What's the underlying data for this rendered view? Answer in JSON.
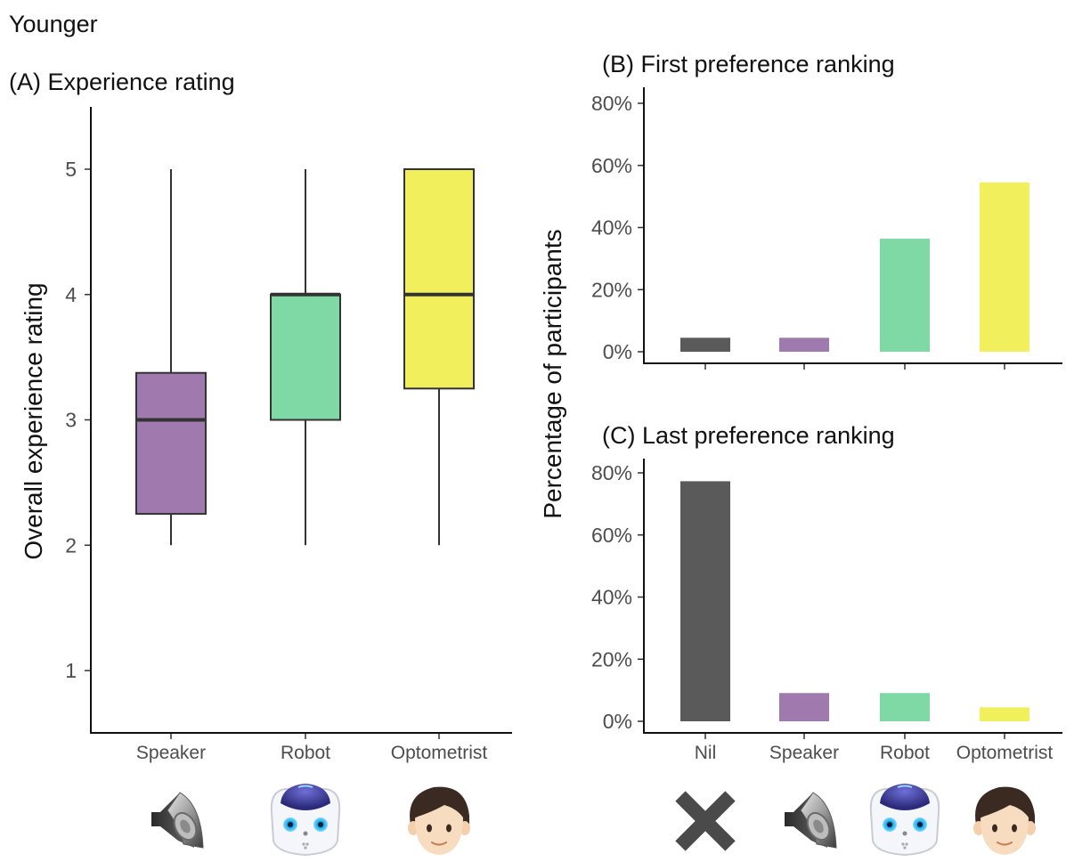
{
  "figure_title": "Younger",
  "y_label_shared": "Percentage of participants",
  "chart_data": [
    {
      "id": "A",
      "type": "box",
      "title": "(A) Experience rating",
      "ylabel": "Overall experience rating",
      "xlabel": "",
      "ylim": [
        0.5,
        5.5
      ],
      "yticks": [
        1,
        2,
        3,
        4,
        5
      ],
      "categories": [
        "Speaker",
        "Robot",
        "Optometrist"
      ],
      "boxes": [
        {
          "category": "Speaker",
          "min": 2,
          "q1": 2.25,
          "median": 3,
          "q3": 3.375,
          "max": 5,
          "color": "#a07aaf"
        },
        {
          "category": "Robot",
          "min": 2,
          "q1": 3,
          "median": 4,
          "q3": 4,
          "max": 5,
          "color": "#7ed9a4"
        },
        {
          "category": "Optometrist",
          "min": 2,
          "q1": 3.25,
          "median": 4,
          "q3": 5,
          "max": 5,
          "color": "#f1ef5c"
        }
      ]
    },
    {
      "id": "B",
      "type": "bar",
      "title": "(B) First preference ranking",
      "ylabel": "",
      "xlabel": "",
      "ylim": [
        0,
        0.85
      ],
      "yticks": [
        0,
        0.2,
        0.4,
        0.6,
        0.8
      ],
      "ytick_labels": [
        "0%",
        "20%",
        "40%",
        "60%",
        "80%"
      ],
      "categories": [
        "Nil",
        "Speaker",
        "Robot",
        "Optometrist"
      ],
      "values": [
        0.045,
        0.045,
        0.364,
        0.545
      ],
      "colors": [
        "#5a5a5a",
        "#a07aaf",
        "#7ed9a4",
        "#f1ef5c"
      ]
    },
    {
      "id": "C",
      "type": "bar",
      "title": "(C) Last preference ranking",
      "ylabel": "",
      "xlabel": "",
      "ylim": [
        0,
        0.85
      ],
      "yticks": [
        0,
        0.2,
        0.4,
        0.6,
        0.8
      ],
      "ytick_labels": [
        "0%",
        "20%",
        "40%",
        "60%",
        "80%"
      ],
      "categories": [
        "Nil",
        "Speaker",
        "Robot",
        "Optometrist"
      ],
      "values": [
        0.773,
        0.091,
        0.091,
        0.045
      ],
      "colors": [
        "#5a5a5a",
        "#a07aaf",
        "#7ed9a4",
        "#f1ef5c"
      ]
    }
  ],
  "icons": {
    "panel_a": [
      "speaker-icon",
      "robot-icon",
      "person-icon"
    ],
    "panel_bc": [
      "cross-icon",
      "speaker-icon",
      "robot-icon",
      "person-icon"
    ]
  }
}
